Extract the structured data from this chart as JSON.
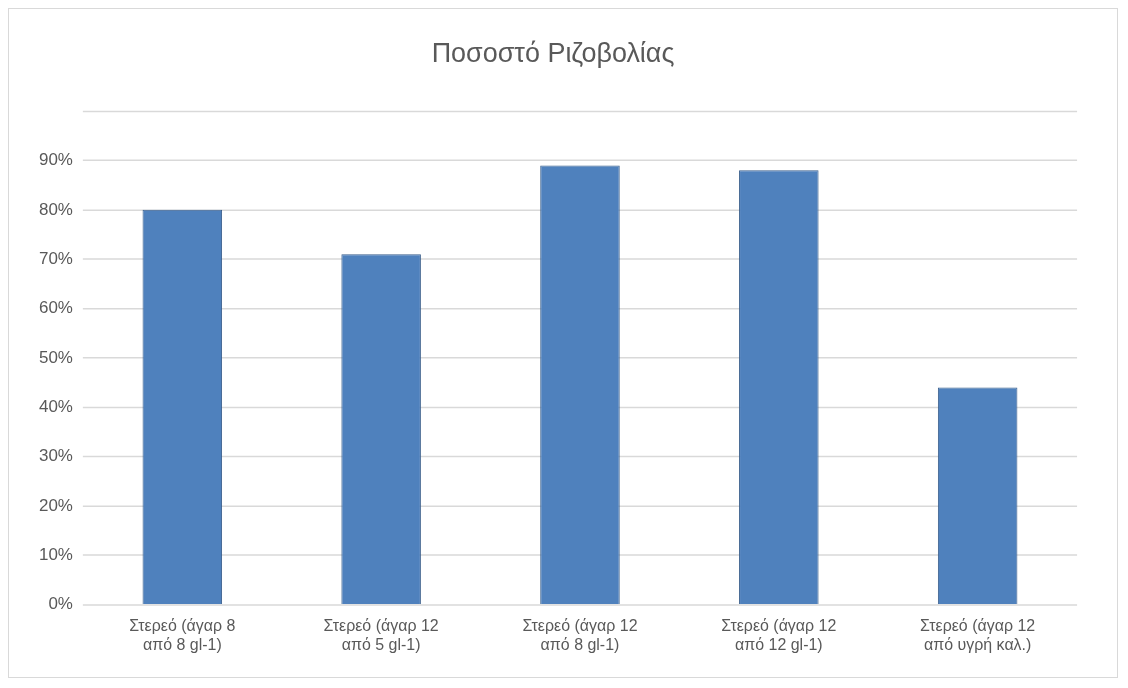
{
  "chart_data": {
    "type": "bar",
    "title": "Ποσοστό Ριζοβολίας",
    "categories": [
      "Στερεό (άγαρ 8 από 8 gl-1)",
      "Στερεό (άγαρ 12 από 5 gl-1)",
      "Στερεό (άγαρ 12 από 8 gl-1)",
      "Στερεό (άγαρ 12 από 12 gl-1)",
      "Στερεό (άγαρ 12 από υγρή καλ.)"
    ],
    "values": [
      80,
      71,
      89,
      88,
      44
    ],
    "color": "#4f81bd",
    "ylim": [
      0,
      100
    ],
    "yticks": [
      {
        "value": 0,
        "label": "0%"
      },
      {
        "value": 10,
        "label": "10%"
      },
      {
        "value": 20,
        "label": "20%"
      },
      {
        "value": 30,
        "label": "30%"
      },
      {
        "value": 40,
        "label": "40%"
      },
      {
        "value": 50,
        "label": "50%"
      },
      {
        "value": 60,
        "label": "60%"
      },
      {
        "value": 70,
        "label": "70%"
      },
      {
        "value": 80,
        "label": "80%"
      },
      {
        "value": 90,
        "label": "90%"
      },
      {
        "value": 100,
        "label": null
      }
    ],
    "grid": "y"
  }
}
